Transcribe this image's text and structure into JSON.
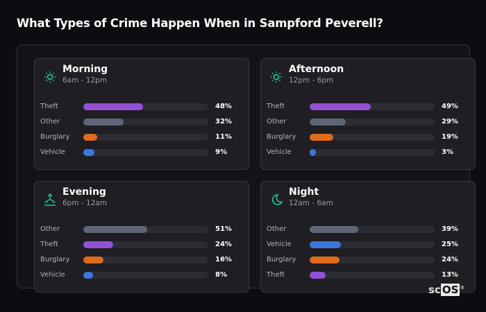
{
  "title": "What Types of Crime Happen When in Sampford Peverell?",
  "colors": {
    "Theft": "#9150d6",
    "Other": "#5f6677",
    "Burglary": "#e06b1c",
    "Vehicle": "#3a78dc",
    "accent": "#22c08a"
  },
  "chart_data": {
    "type": "bar",
    "title": "What Types of Crime Happen When in Sampford Peverell?",
    "xlim": [
      0,
      100
    ],
    "panels": [
      {
        "name": "Morning",
        "range": "6am - 12pm",
        "icon": "sun-icon",
        "categories": [
          "Theft",
          "Other",
          "Burglary",
          "Vehicle"
        ],
        "values": [
          48,
          32,
          11,
          9
        ],
        "labels": [
          "48%",
          "32%",
          "11%",
          "9%"
        ]
      },
      {
        "name": "Afternoon",
        "range": "12pm - 6pm",
        "icon": "sun-icon",
        "categories": [
          "Theft",
          "Other",
          "Burglary",
          "Vehicle"
        ],
        "values": [
          49,
          29,
          19,
          3
        ],
        "labels": [
          "49%",
          "29%",
          "19%",
          "3%"
        ]
      },
      {
        "name": "Evening",
        "range": "6pm - 12am",
        "icon": "sunset-icon",
        "categories": [
          "Other",
          "Theft",
          "Burglary",
          "Vehicle"
        ],
        "values": [
          51,
          24,
          16,
          8
        ],
        "labels": [
          "51%",
          "24%",
          "16%",
          "8%"
        ]
      },
      {
        "name": "Night",
        "range": "12am - 6am",
        "icon": "moon-icon",
        "categories": [
          "Other",
          "Vehicle",
          "Burglary",
          "Theft"
        ],
        "values": [
          39,
          25,
          24,
          13
        ],
        "labels": [
          "39%",
          "25%",
          "24%",
          "13%"
        ]
      }
    ]
  },
  "logo": {
    "sc": "sc",
    "os": "OS",
    "mark": "®"
  }
}
